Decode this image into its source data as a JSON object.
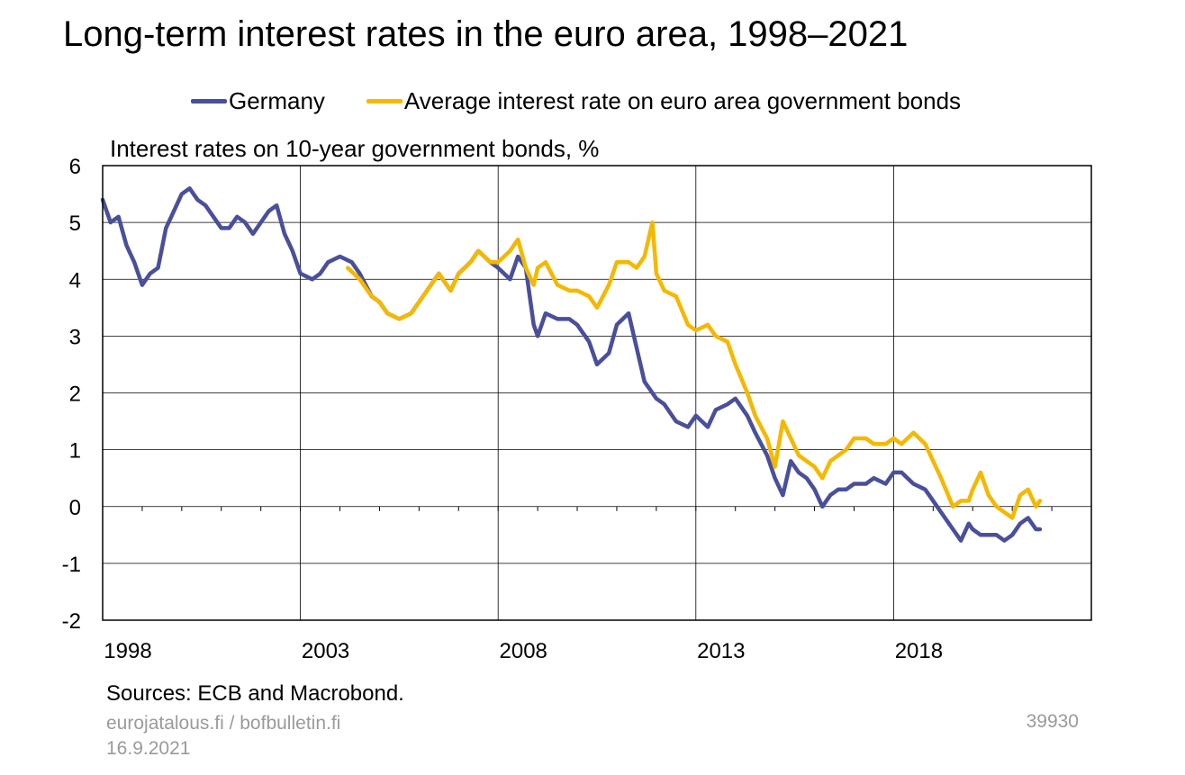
{
  "title": "Long-term interest rates in the euro area, 1998–2021",
  "footer": {
    "sources": "Sources: ECB and Macrobond.",
    "site": "eurojatalous.fi / bofbulletin.fi",
    "date": "16.9.2021",
    "chart_id": "39930"
  },
  "chart_data": {
    "type": "line",
    "title": "Long-term interest rates in the euro area, 1998–2021",
    "ylabel": "Interest rates on 10-year government bonds, %",
    "xlabel": "",
    "xlim": [
      1998.0,
      2023.0
    ],
    "ylim": [
      -2,
      6
    ],
    "x_ticks": [
      1998,
      2003,
      2008,
      2013,
      2018
    ],
    "y_ticks": [
      -2,
      -1,
      0,
      1,
      2,
      3,
      4,
      5,
      6
    ],
    "grid": true,
    "legend_position": "top",
    "series": [
      {
        "name": "Germany",
        "color": "#4a4f9c",
        "x": [
          1998.0,
          1998.2,
          1998.4,
          1998.6,
          1998.8,
          1999.0,
          1999.2,
          1999.4,
          1999.6,
          1999.8,
          2000.0,
          2000.2,
          2000.4,
          2000.6,
          2000.8,
          2001.0,
          2001.2,
          2001.4,
          2001.6,
          2001.8,
          2002.0,
          2002.2,
          2002.4,
          2002.6,
          2002.8,
          2003.0,
          2003.3,
          2003.5,
          2003.7,
          2004.0,
          2004.3,
          2004.5,
          2004.8,
          2005.0,
          2005.2,
          2005.5,
          2005.8,
          2006.0,
          2006.3,
          2006.5,
          2006.8,
          2007.0,
          2007.3,
          2007.5,
          2007.8,
          2008.0,
          2008.3,
          2008.5,
          2008.7,
          2008.9,
          2009.0,
          2009.2,
          2009.5,
          2009.8,
          2010.0,
          2010.3,
          2010.5,
          2010.8,
          2011.0,
          2011.3,
          2011.5,
          2011.7,
          2011.9,
          2012.0,
          2012.2,
          2012.5,
          2012.8,
          2013.0,
          2013.3,
          2013.5,
          2013.8,
          2014.0,
          2014.3,
          2014.5,
          2014.8,
          2015.0,
          2015.2,
          2015.4,
          2015.6,
          2015.8,
          2016.0,
          2016.2,
          2016.4,
          2016.6,
          2016.8,
          2017.0,
          2017.3,
          2017.5,
          2017.8,
          2018.0,
          2018.2,
          2018.5,
          2018.8,
          2019.0,
          2019.2,
          2019.5,
          2019.7,
          2019.9,
          2020.0,
          2020.2,
          2020.4,
          2020.6,
          2020.8,
          2021.0,
          2021.2,
          2021.4,
          2021.6,
          2021.7
        ],
        "values": [
          5.4,
          5.0,
          5.1,
          4.6,
          4.3,
          3.9,
          4.1,
          4.2,
          4.9,
          5.2,
          5.5,
          5.6,
          5.4,
          5.3,
          5.1,
          4.9,
          4.9,
          5.1,
          5.0,
          4.8,
          5.0,
          5.2,
          5.3,
          4.8,
          4.5,
          4.1,
          4.0,
          4.1,
          4.3,
          4.4,
          4.3,
          4.1,
          3.7,
          3.6,
          3.4,
          3.3,
          3.4,
          3.6,
          3.9,
          4.1,
          3.8,
          4.1,
          4.3,
          4.5,
          4.3,
          4.2,
          4.0,
          4.4,
          4.2,
          3.2,
          3.0,
          3.4,
          3.3,
          3.3,
          3.2,
          2.9,
          2.5,
          2.7,
          3.2,
          3.4,
          2.8,
          2.2,
          2.0,
          1.9,
          1.8,
          1.5,
          1.4,
          1.6,
          1.4,
          1.7,
          1.8,
          1.9,
          1.6,
          1.3,
          0.9,
          0.5,
          0.2,
          0.8,
          0.6,
          0.5,
          0.3,
          0.0,
          0.2,
          0.3,
          0.3,
          0.4,
          0.4,
          0.5,
          0.4,
          0.6,
          0.6,
          0.4,
          0.3,
          0.1,
          -0.1,
          -0.4,
          -0.6,
          -0.3,
          -0.4,
          -0.5,
          -0.5,
          -0.5,
          -0.6,
          -0.5,
          -0.3,
          -0.2,
          -0.4,
          -0.4
        ]
      },
      {
        "name": "Average interest rate on euro area government bonds",
        "color": "#f5b800",
        "x": [
          2004.2,
          2004.5,
          2004.8,
          2005.0,
          2005.2,
          2005.5,
          2005.8,
          2006.0,
          2006.3,
          2006.5,
          2006.8,
          2007.0,
          2007.3,
          2007.5,
          2007.8,
          2008.0,
          2008.3,
          2008.5,
          2008.7,
          2008.9,
          2009.0,
          2009.2,
          2009.5,
          2009.8,
          2010.0,
          2010.3,
          2010.5,
          2010.8,
          2011.0,
          2011.3,
          2011.5,
          2011.7,
          2011.9,
          2012.0,
          2012.2,
          2012.5,
          2012.8,
          2013.0,
          2013.3,
          2013.5,
          2013.8,
          2014.0,
          2014.3,
          2014.5,
          2014.8,
          2015.0,
          2015.2,
          2015.4,
          2015.6,
          2015.8,
          2016.0,
          2016.2,
          2016.4,
          2016.6,
          2016.8,
          2017.0,
          2017.3,
          2017.5,
          2017.8,
          2018.0,
          2018.2,
          2018.5,
          2018.8,
          2019.0,
          2019.2,
          2019.5,
          2019.7,
          2019.9,
          2020.0,
          2020.2,
          2020.4,
          2020.6,
          2020.8,
          2021.0,
          2021.2,
          2021.4,
          2021.6,
          2021.7
        ],
        "values": [
          4.2,
          4.0,
          3.7,
          3.6,
          3.4,
          3.3,
          3.4,
          3.6,
          3.9,
          4.1,
          3.8,
          4.1,
          4.3,
          4.5,
          4.3,
          4.3,
          4.5,
          4.7,
          4.2,
          3.9,
          4.2,
          4.3,
          3.9,
          3.8,
          3.8,
          3.7,
          3.5,
          3.9,
          4.3,
          4.3,
          4.2,
          4.4,
          5.0,
          4.1,
          3.8,
          3.7,
          3.2,
          3.1,
          3.2,
          3.0,
          2.9,
          2.5,
          2.0,
          1.6,
          1.2,
          0.7,
          1.5,
          1.2,
          0.9,
          0.8,
          0.7,
          0.5,
          0.8,
          0.9,
          1.0,
          1.2,
          1.2,
          1.1,
          1.1,
          1.2,
          1.1,
          1.3,
          1.1,
          0.8,
          0.5,
          0.0,
          0.1,
          0.1,
          0.3,
          0.6,
          0.2,
          0.0,
          -0.1,
          -0.2,
          0.2,
          0.3,
          0.0,
          0.1
        ]
      }
    ]
  }
}
